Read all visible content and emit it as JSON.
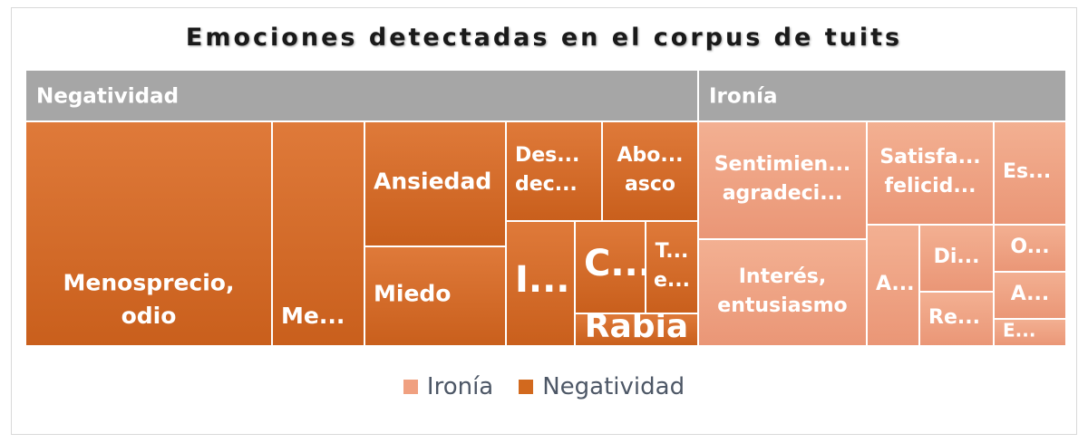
{
  "chart_data": {
    "type": "treemap",
    "title": "Emociones detectadas en el corpus de tuits",
    "groups": [
      {
        "name": "Negatividad",
        "color": "#d2691e",
        "items": [
          {
            "label": "Menosprecio, odio"
          },
          {
            "label": "Me..."
          },
          {
            "label": "Ansiedad"
          },
          {
            "label": "Miedo"
          },
          {
            "label": "Des... dec..."
          },
          {
            "label": "Abo... asco"
          },
          {
            "label": "I..."
          },
          {
            "label": "C..."
          },
          {
            "label": "T... e..."
          },
          {
            "label": "Rabia"
          }
        ]
      },
      {
        "name": "Ironía",
        "color": "#f0a080",
        "items": [
          {
            "label": "Sentimien... agradeci..."
          },
          {
            "label": "Satisfa... felicid..."
          },
          {
            "label": "Es..."
          },
          {
            "label": "Interés, entusiasmo"
          },
          {
            "label": "A..."
          },
          {
            "label": "Di..."
          },
          {
            "label": "Re..."
          },
          {
            "label": "O..."
          },
          {
            "label": "A..."
          },
          {
            "label": "E..."
          }
        ]
      }
    ],
    "legend": [
      "Ironía",
      "Negatividad"
    ],
    "legend_position": "bottom"
  }
}
